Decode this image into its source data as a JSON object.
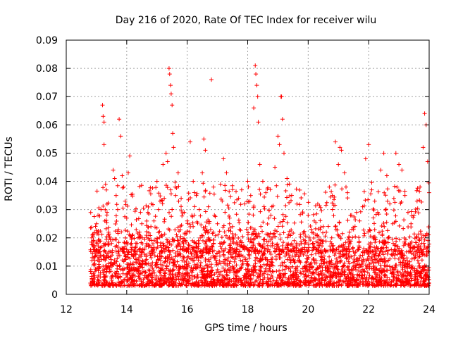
{
  "chart_data": {
    "type": "scatter",
    "title": "Day 216 of 2020, Rate Of TEC Index for receiver wilu",
    "xlabel": "GPS time / hours",
    "ylabel": "ROTI / TECUs",
    "xlim": [
      12,
      24
    ],
    "ylim": [
      0,
      0.09
    ],
    "x_ticks": [
      12,
      14,
      16,
      18,
      20,
      22,
      24
    ],
    "y_ticks": [
      0,
      0.01,
      0.02,
      0.03,
      0.04,
      0.05,
      0.06,
      0.07,
      0.08,
      0.09
    ],
    "x_tick_labels": [
      "12",
      "14",
      "16",
      "18",
      "20",
      "22",
      "24"
    ],
    "y_tick_labels": [
      "0",
      "0.01",
      "0.02",
      "0.03",
      "0.04",
      "0.05",
      "0.06",
      "0.07",
      "0.08",
      "0.09"
    ],
    "grid": true,
    "marker": "+",
    "marker_color": "#ff0000",
    "series": [
      {
        "points": [
          [
            12.8,
            0.004
          ],
          [
            12.85,
            0.012
          ],
          [
            12.9,
            0.019
          ],
          [
            12.95,
            0.008
          ],
          [
            13.0,
            0.025
          ],
          [
            13.05,
            0.028
          ],
          [
            13.1,
            0.015
          ],
          [
            13.15,
            0.03
          ],
          [
            13.2,
            0.067
          ],
          [
            13.22,
            0.063
          ],
          [
            13.25,
            0.061
          ],
          [
            13.25,
            0.053
          ],
          [
            13.3,
            0.039
          ],
          [
            13.35,
            0.029
          ],
          [
            13.4,
            0.022
          ],
          [
            13.5,
            0.018
          ],
          [
            13.55,
            0.044
          ],
          [
            13.6,
            0.041
          ],
          [
            13.65,
            0.035
          ],
          [
            13.7,
            0.03
          ],
          [
            13.75,
            0.062
          ],
          [
            13.8,
            0.056
          ],
          [
            13.85,
            0.042
          ],
          [
            13.9,
            0.038
          ],
          [
            13.95,
            0.033
          ],
          [
            14.0,
            0.027
          ],
          [
            14.05,
            0.043
          ],
          [
            14.1,
            0.049
          ],
          [
            14.2,
            0.021
          ],
          [
            14.3,
            0.017
          ],
          [
            14.4,
            0.013
          ],
          [
            14.5,
            0.011
          ],
          [
            14.6,
            0.016
          ],
          [
            14.7,
            0.029
          ],
          [
            14.8,
            0.024
          ],
          [
            14.9,
            0.026
          ],
          [
            15.0,
            0.04
          ],
          [
            15.05,
            0.03
          ],
          [
            15.1,
            0.033
          ],
          [
            15.2,
            0.046
          ],
          [
            15.3,
            0.05
          ],
          [
            15.35,
            0.047
          ],
          [
            15.4,
            0.08
          ],
          [
            15.42,
            0.078
          ],
          [
            15.45,
            0.074
          ],
          [
            15.47,
            0.071
          ],
          [
            15.5,
            0.067
          ],
          [
            15.52,
            0.057
          ],
          [
            15.55,
            0.052
          ],
          [
            15.6,
            0.038
          ],
          [
            15.7,
            0.043
          ],
          [
            15.8,
            0.034
          ],
          [
            15.9,
            0.029
          ],
          [
            16.0,
            0.026
          ],
          [
            16.1,
            0.054
          ],
          [
            16.2,
            0.04
          ],
          [
            16.3,
            0.035
          ],
          [
            16.4,
            0.03
          ],
          [
            16.5,
            0.043
          ],
          [
            16.55,
            0.055
          ],
          [
            16.6,
            0.051
          ],
          [
            16.7,
            0.031
          ],
          [
            16.8,
            0.076
          ],
          [
            16.9,
            0.028
          ],
          [
            17.0,
            0.025
          ],
          [
            17.1,
            0.039
          ],
          [
            17.2,
            0.048
          ],
          [
            17.3,
            0.043
          ],
          [
            17.4,
            0.027
          ],
          [
            17.5,
            0.024
          ],
          [
            17.6,
            0.021
          ],
          [
            17.7,
            0.034
          ],
          [
            17.8,
            0.037
          ],
          [
            17.9,
            0.032
          ],
          [
            18.0,
            0.04
          ],
          [
            18.1,
            0.035
          ],
          [
            18.2,
            0.066
          ],
          [
            18.25,
            0.081
          ],
          [
            18.27,
            0.078
          ],
          [
            18.3,
            0.074
          ],
          [
            18.33,
            0.07
          ],
          [
            18.35,
            0.061
          ],
          [
            18.4,
            0.046
          ],
          [
            18.5,
            0.04
          ],
          [
            18.6,
            0.036
          ],
          [
            18.7,
            0.027
          ],
          [
            18.8,
            0.031
          ],
          [
            18.9,
            0.045
          ],
          [
            19.0,
            0.056
          ],
          [
            19.05,
            0.053
          ],
          [
            19.1,
            0.07
          ],
          [
            19.12,
            0.07
          ],
          [
            19.15,
            0.062
          ],
          [
            19.2,
            0.05
          ],
          [
            19.3,
            0.041
          ],
          [
            19.4,
            0.021
          ],
          [
            19.5,
            0.017
          ],
          [
            19.6,
            0.014
          ],
          [
            19.7,
            0.012
          ],
          [
            19.8,
            0.015
          ],
          [
            19.9,
            0.019
          ],
          [
            20.0,
            0.028
          ],
          [
            20.1,
            0.023
          ],
          [
            20.2,
            0.026
          ],
          [
            20.3,
            0.021
          ],
          [
            20.4,
            0.018
          ],
          [
            20.5,
            0.024
          ],
          [
            20.6,
            0.022
          ],
          [
            20.7,
            0.038
          ],
          [
            20.8,
            0.035
          ],
          [
            20.9,
            0.054
          ],
          [
            21.0,
            0.046
          ],
          [
            21.05,
            0.052
          ],
          [
            21.1,
            0.051
          ],
          [
            21.2,
            0.043
          ],
          [
            21.3,
            0.036
          ],
          [
            21.4,
            0.028
          ],
          [
            21.5,
            0.023
          ],
          [
            21.6,
            0.029
          ],
          [
            21.7,
            0.026
          ],
          [
            21.8,
            0.031
          ],
          [
            21.9,
            0.048
          ],
          [
            22.0,
            0.053
          ],
          [
            22.1,
            0.037
          ],
          [
            22.2,
            0.033
          ],
          [
            22.3,
            0.029
          ],
          [
            22.4,
            0.044
          ],
          [
            22.5,
            0.05
          ],
          [
            22.6,
            0.042
          ],
          [
            22.7,
            0.032
          ],
          [
            22.8,
            0.025
          ],
          [
            22.9,
            0.05
          ],
          [
            23.0,
            0.046
          ],
          [
            23.1,
            0.044
          ],
          [
            23.2,
            0.035
          ],
          [
            23.3,
            0.029
          ],
          [
            23.4,
            0.025
          ],
          [
            23.5,
            0.028
          ],
          [
            23.6,
            0.033
          ],
          [
            23.7,
            0.038
          ],
          [
            23.8,
            0.052
          ],
          [
            23.85,
            0.064
          ],
          [
            23.9,
            0.06
          ],
          [
            23.95,
            0.047
          ],
          [
            24.0,
            0.036
          ]
        ],
        "dense_band": {
          "x_range": [
            12.8,
            24.0
          ],
          "y_range": [
            0.003,
            0.02
          ],
          "count": 2600
        }
      }
    ]
  }
}
